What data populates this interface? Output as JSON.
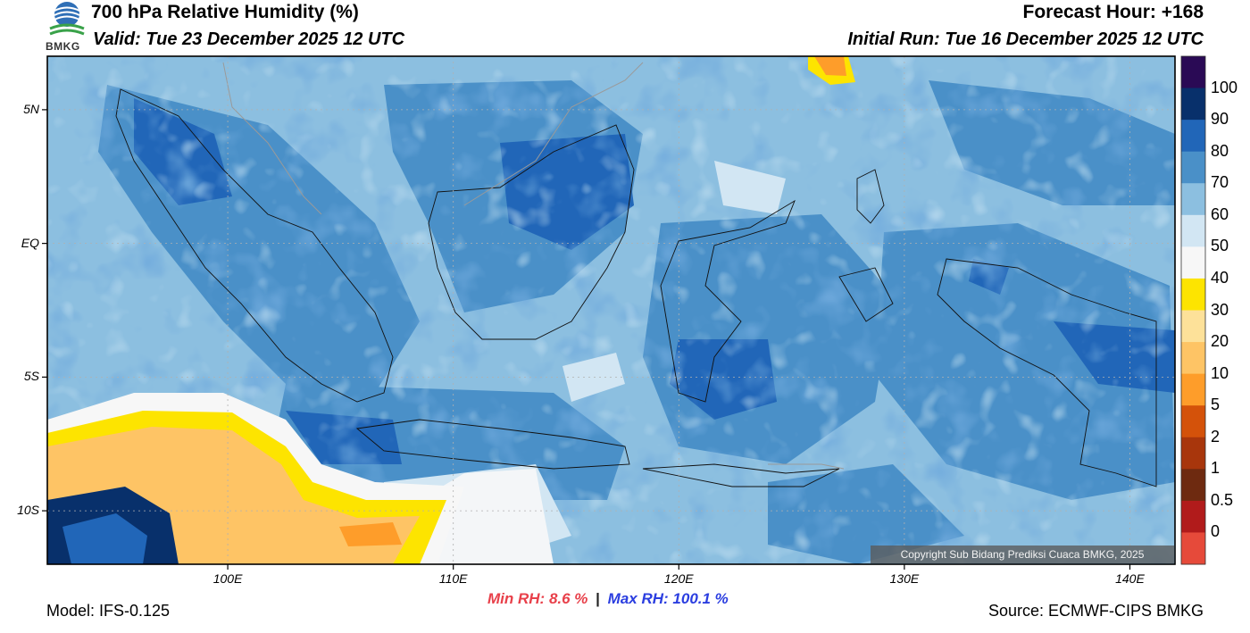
{
  "header": {
    "title": "700 hPa Relative Humidity (%)",
    "valid": "Valid: Tue 23 December 2025 12 UTC",
    "forecast_hour": "Forecast Hour: +168",
    "initial_run": "Initial Run: Tue 16 December 2025 12 UTC"
  },
  "logo": {
    "text": "BMKG"
  },
  "map": {
    "lon_range": [
      92,
      142
    ],
    "lat_range": [
      -12,
      7
    ],
    "lon_ticks": [
      {
        "value": 100,
        "label": "100E"
      },
      {
        "value": 110,
        "label": "110E"
      },
      {
        "value": 120,
        "label": "120E"
      },
      {
        "value": 130,
        "label": "130E"
      },
      {
        "value": 140,
        "label": "140E"
      }
    ],
    "lat_ticks": [
      {
        "value": 5,
        "label": "5N"
      },
      {
        "value": 0,
        "label": "EQ"
      },
      {
        "value": -5,
        "label": "5S"
      },
      {
        "value": -10,
        "label": "10S"
      }
    ]
  },
  "colorbar": {
    "labels": [
      "100",
      "90",
      "80",
      "70",
      "60",
      "50",
      "40",
      "30",
      "20",
      "10",
      "5",
      "2",
      "1",
      "0.5",
      "0"
    ],
    "colors": [
      "#2a0a55",
      "#08306b",
      "#2166b8",
      "#4a90c8",
      "#8cbfe0",
      "#d2e6f3",
      "#f7f7f7",
      "#fde400",
      "#fde199",
      "#fec465",
      "#fe9d2a",
      "#d4520a",
      "#a8360c",
      "#6e2a10",
      "#b11b1b",
      "#e64a3a"
    ]
  },
  "stats": {
    "min_label": "Min RH:",
    "min_value": "8.6 %",
    "separator": "|",
    "max_label": "Max RH: 100.1 %"
  },
  "footer": {
    "model": "Model: IFS-0.125",
    "source": "Source: ECMWF-CIPS BMKG",
    "copyright": "Copyright Sub Bidang Prediksi Cuaca BMKG, 2025"
  }
}
